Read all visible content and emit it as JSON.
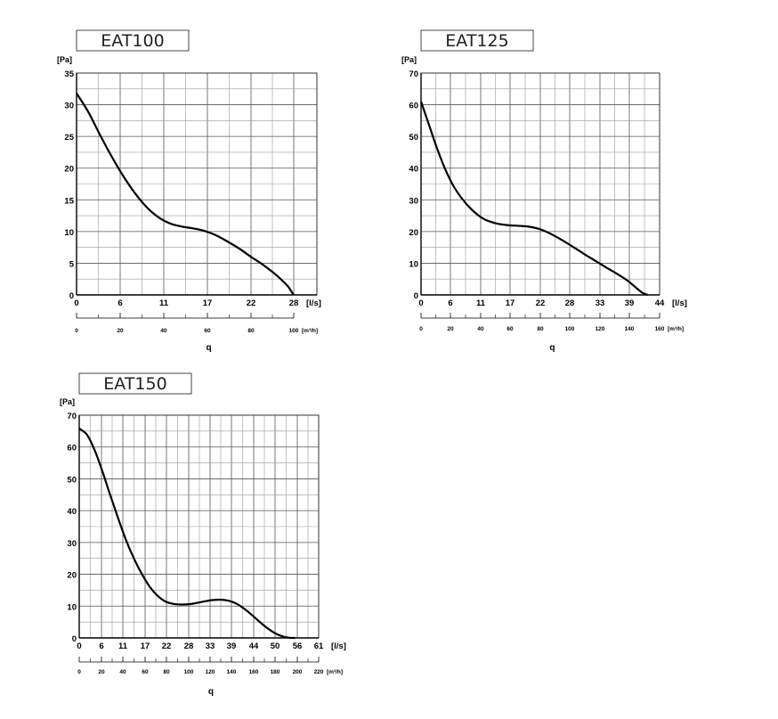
{
  "chart_data": [
    {
      "type": "line",
      "title": "EAT100",
      "ylabel": "[Pa]",
      "xlabel": "q",
      "ylim": [
        0,
        35
      ],
      "y_ticks": [
        "0",
        "5",
        "10",
        "15",
        "20",
        "25",
        "30",
        "35"
      ],
      "x_ticks": [
        "0",
        "6",
        "11",
        "17",
        "22",
        "28"
      ],
      "x_unit": "[l/s]",
      "xlim": [
        0,
        31
      ],
      "x2_ticks": [
        "0",
        "20",
        "40",
        "60",
        "80",
        "100"
      ],
      "x2_unit": "[m³/h]",
      "grid": true,
      "series": [
        {
          "x": [
            0,
            1.5,
            3,
            4.5,
            6,
            7.5,
            9,
            10.5,
            12,
            13.5,
            15,
            16.5,
            18,
            19.5,
            21,
            22.5,
            24,
            25.5,
            26.5,
            27.3,
            28.0
          ],
          "y": [
            31.8,
            28.9,
            25.3,
            21.9,
            18.8,
            16.1,
            13.9,
            12.3,
            11.3,
            10.8,
            10.5,
            10.1,
            9.4,
            8.4,
            7.3,
            6.0,
            4.8,
            3.4,
            2.3,
            1.3,
            0
          ]
        }
      ]
    },
    {
      "type": "line",
      "title": "EAT125",
      "ylabel": "[Pa]",
      "xlabel": "q",
      "ylim": [
        0,
        70
      ],
      "y_ticks": [
        "0",
        "10",
        "20",
        "30",
        "40",
        "50",
        "60",
        "70"
      ],
      "x_ticks": [
        "0",
        "6",
        "11",
        "17",
        "22",
        "28",
        "33",
        "39",
        "44"
      ],
      "x_unit": "[l/s]",
      "xlim": [
        0,
        44
      ],
      "x2_ticks": [
        "0",
        "20",
        "40",
        "60",
        "80",
        "100",
        "120",
        "140",
        "160"
      ],
      "x2_unit": "[m³/h]",
      "grid": true,
      "series": [
        {
          "x": [
            0,
            1.5,
            3,
            4.5,
            6,
            7.5,
            9,
            10.5,
            12,
            14,
            16,
            18,
            20,
            22,
            24,
            26,
            28,
            30,
            32,
            34,
            36,
            38,
            39.5,
            40.8,
            41.8
          ],
          "y": [
            61.0,
            53.5,
            46.0,
            39.5,
            34.3,
            30.5,
            27.5,
            25.2,
            23.6,
            22.5,
            22.0,
            21.8,
            21.5,
            20.7,
            19.2,
            17.3,
            15.2,
            13.0,
            10.9,
            8.8,
            6.8,
            4.6,
            2.5,
            0.7,
            0
          ]
        }
      ]
    },
    {
      "type": "line",
      "title": "EAT150",
      "ylabel": "[Pa]",
      "xlabel": "q",
      "ylim": [
        0,
        70
      ],
      "y_ticks": [
        "0",
        "10",
        "20",
        "30",
        "40",
        "50",
        "60",
        "70"
      ],
      "x_ticks": [
        "0",
        "6",
        "11",
        "17",
        "22",
        "28",
        "33",
        "39",
        "44",
        "50",
        "56",
        "61"
      ],
      "x_unit": "[l/s]",
      "xlim": [
        0,
        61
      ],
      "x2_ticks": [
        "0",
        "20",
        "40",
        "60",
        "80",
        "100",
        "120",
        "140",
        "160",
        "180",
        "200",
        "220"
      ],
      "x2_unit": "[m³/h]",
      "grid": true,
      "series": [
        {
          "x": [
            0,
            2,
            4,
            6,
            8,
            10,
            12,
            14,
            16,
            18,
            20,
            22,
            24,
            26,
            28,
            30,
            32,
            34,
            36,
            38,
            40,
            42,
            44,
            46,
            48,
            50,
            52,
            53.5,
            55
          ],
          "y": [
            65.8,
            63.8,
            58.8,
            52.0,
            44.5,
            37.3,
            30.5,
            24.8,
            20.0,
            16.0,
            13.2,
            11.4,
            10.7,
            10.5,
            10.6,
            11.0,
            11.5,
            11.9,
            12.0,
            11.7,
            10.8,
            9.2,
            7.2,
            5.0,
            3.0,
            1.4,
            0.4,
            0.05,
            0
          ]
        }
      ]
    }
  ]
}
